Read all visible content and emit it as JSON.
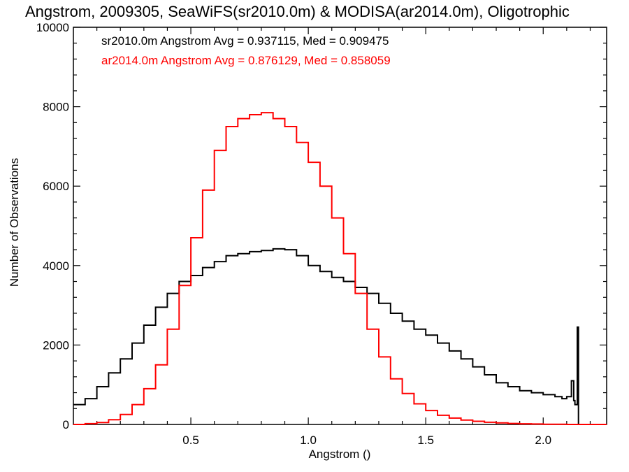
{
  "chart_data": {
    "type": "line",
    "title": "Angstrom, 2009305, SeaWiFS(sr2010.0m) & MODISA(ar2014.0m), Oligotrophic",
    "xlabel": "Angstrom ()",
    "ylabel": "Number of Observations",
    "xlim": [
      0.0,
      2.27
    ],
    "ylim": [
      0,
      10000
    ],
    "x_ticks": [
      0.5,
      1.0,
      1.5,
      2.0
    ],
    "x_tick_labels": [
      "0.5",
      "1.0",
      "1.5",
      "2.0"
    ],
    "y_ticks": [
      0,
      2000,
      4000,
      6000,
      8000,
      10000
    ],
    "y_tick_labels": [
      "0",
      "2000",
      "4000",
      "6000",
      "8000",
      "10000"
    ],
    "legend": [
      {
        "text": "sr2010.0m Angstrom Avg = 0.937115, Med = 0.909475",
        "color": "#000000"
      },
      {
        "text": "ar2014.0m Angstrom Avg = 0.876129, Med = 0.858059",
        "color": "#ff0000"
      }
    ],
    "legend_position": "top-left",
    "series": [
      {
        "color": "#000000",
        "x": [
          0.0,
          0.05,
          0.1,
          0.15,
          0.2,
          0.25,
          0.3,
          0.35,
          0.4,
          0.45,
          0.5,
          0.55,
          0.6,
          0.65,
          0.7,
          0.75,
          0.8,
          0.85,
          0.9,
          0.95,
          1.0,
          1.05,
          1.1,
          1.15,
          1.2,
          1.25,
          1.3,
          1.35,
          1.4,
          1.45,
          1.5,
          1.55,
          1.6,
          1.65,
          1.7,
          1.75,
          1.8,
          1.85,
          1.9,
          1.95,
          2.0,
          2.05,
          2.08,
          2.1,
          2.12,
          2.13,
          2.135,
          2.145,
          2.15,
          2.16
        ],
        "values": [
          500,
          650,
          950,
          1300,
          1650,
          2050,
          2500,
          2950,
          3300,
          3600,
          3750,
          3950,
          4100,
          4250,
          4300,
          4350,
          4380,
          4420,
          4400,
          4250,
          4000,
          3850,
          3700,
          3600,
          3450,
          3300,
          3050,
          2800,
          2600,
          2400,
          2250,
          2050,
          1850,
          1650,
          1450,
          1250,
          1050,
          950,
          850,
          800,
          750,
          700,
          650,
          700,
          1100,
          600,
          500,
          2450,
          0,
          0
        ]
      },
      {
        "color": "#ff0000",
        "x": [
          0.0,
          0.05,
          0.1,
          0.15,
          0.2,
          0.25,
          0.3,
          0.35,
          0.4,
          0.45,
          0.5,
          0.55,
          0.6,
          0.65,
          0.7,
          0.75,
          0.8,
          0.85,
          0.9,
          0.95,
          1.0,
          1.05,
          1.1,
          1.15,
          1.2,
          1.25,
          1.3,
          1.35,
          1.4,
          1.45,
          1.5,
          1.55,
          1.6,
          1.65,
          1.7,
          1.75,
          1.8,
          1.85,
          1.9,
          1.95,
          2.0,
          2.05,
          2.1,
          2.15,
          2.2,
          2.25
        ],
        "values": [
          0,
          20,
          50,
          120,
          250,
          500,
          900,
          1500,
          2400,
          3500,
          4700,
          5900,
          6900,
          7500,
          7700,
          7800,
          7850,
          7700,
          7500,
          7100,
          6600,
          6000,
          5200,
          4300,
          3300,
          2400,
          1700,
          1150,
          780,
          520,
          350,
          230,
          160,
          110,
          80,
          55,
          40,
          25,
          15,
          10,
          5,
          3,
          0,
          0,
          0,
          0
        ]
      }
    ]
  }
}
